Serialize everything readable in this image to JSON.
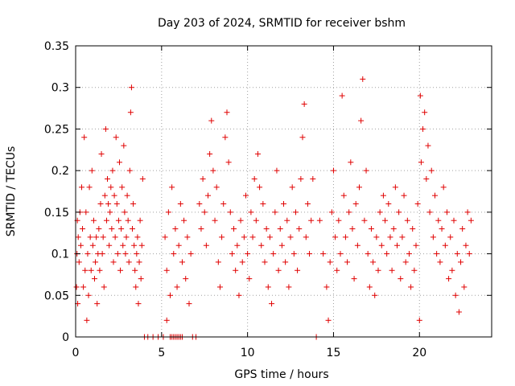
{
  "chart_data": {
    "type": "scatter",
    "title": "Day 203 of 2024, SRMTID for receiver bshm",
    "xlabel": "GPS time / hours",
    "ylabel": "SRMTID / TECUs",
    "xlim": [
      0,
      24.2
    ],
    "ylim": [
      0,
      0.35
    ],
    "xticks": [
      0,
      5,
      10,
      15,
      20
    ],
    "xtick_labels": [
      "0",
      "5",
      "10",
      "15",
      "20"
    ],
    "yticks": [
      0,
      0.05,
      0.1,
      0.15,
      0.2,
      0.25,
      0.3,
      0.35
    ],
    "ytick_labels": [
      "0",
      "0.05",
      "0.1",
      "0.15",
      "0.2",
      "0.25",
      "0.3",
      "0.35"
    ],
    "grid": true,
    "marker": "+",
    "color": "#e00000",
    "series": [
      {
        "name": "bshm",
        "points": [
          [
            0.05,
            0.06
          ],
          [
            0.08,
            0.1
          ],
          [
            0.1,
            0.14
          ],
          [
            0.12,
            0.04
          ],
          [
            0.15,
            0.12
          ],
          [
            0.2,
            0.09
          ],
          [
            0.25,
            0.15
          ],
          [
            0.3,
            0.11
          ],
          [
            0.35,
            0.18
          ],
          [
            0.4,
            0.13
          ],
          [
            0.45,
            0.06
          ],
          [
            0.5,
            0.24
          ],
          [
            0.55,
            0.08
          ],
          [
            0.6,
            0.15
          ],
          [
            0.65,
            0.02
          ],
          [
            0.7,
            0.1
          ],
          [
            0.75,
            0.05
          ],
          [
            0.8,
            0.18
          ],
          [
            0.85,
            0.12
          ],
          [
            0.9,
            0.08
          ],
          [
            0.95,
            0.2
          ],
          [
            1.0,
            0.11
          ],
          [
            1.05,
            0.14
          ],
          [
            1.1,
            0.07
          ],
          [
            1.15,
            0.09
          ],
          [
            1.2,
            0.12
          ],
          [
            1.25,
            0.04
          ],
          [
            1.3,
            0.1
          ],
          [
            1.35,
            0.13
          ],
          [
            1.4,
            0.08
          ],
          [
            1.45,
            0.16
          ],
          [
            1.5,
            0.22
          ],
          [
            1.55,
            0.1
          ],
          [
            1.6,
            0.12
          ],
          [
            1.65,
            0.06
          ],
          [
            1.7,
            0.17
          ],
          [
            1.75,
            0.25
          ],
          [
            1.8,
            0.14
          ],
          [
            1.85,
            0.19
          ],
          [
            1.9,
            0.16
          ],
          [
            1.95,
            0.11
          ],
          [
            2.0,
            0.15
          ],
          [
            2.05,
            0.18
          ],
          [
            2.1,
            0.13
          ],
          [
            2.15,
            0.2
          ],
          [
            2.2,
            0.09
          ],
          [
            2.25,
            0.17
          ],
          [
            2.3,
            0.12
          ],
          [
            2.35,
            0.24
          ],
          [
            2.4,
            0.16
          ],
          [
            2.45,
            0.1
          ],
          [
            2.5,
            0.14
          ],
          [
            2.55,
            0.21
          ],
          [
            2.6,
            0.08
          ],
          [
            2.65,
            0.13
          ],
          [
            2.7,
            0.18
          ],
          [
            2.75,
            0.11
          ],
          [
            2.8,
            0.23
          ],
          [
            2.85,
            0.15
          ],
          [
            2.9,
            0.1
          ],
          [
            2.95,
            0.12
          ],
          [
            3.0,
            0.17
          ],
          [
            3.05,
            0.14
          ],
          [
            3.1,
            0.09
          ],
          [
            3.15,
            0.2
          ],
          [
            3.2,
            0.27
          ],
          [
            3.25,
            0.3
          ],
          [
            3.3,
            0.13
          ],
          [
            3.35,
            0.16
          ],
          [
            3.4,
            0.11
          ],
          [
            3.45,
            0.08
          ],
          [
            3.5,
            0.06
          ],
          [
            3.55,
            0.1
          ],
          [
            3.6,
            0.12
          ],
          [
            3.65,
            0.04
          ],
          [
            3.7,
            0.09
          ],
          [
            3.75,
            0.14
          ],
          [
            3.8,
            0.07
          ],
          [
            3.85,
            0.11
          ],
          [
            3.9,
            0.19
          ],
          [
            4.0,
            0.0
          ],
          [
            4.2,
            0.0
          ],
          [
            4.5,
            0.0
          ],
          [
            4.8,
            0.0
          ],
          [
            5.1,
            0.0
          ],
          [
            5.3,
            0.02
          ],
          [
            5.5,
            0.0
          ],
          [
            5.6,
            0.0
          ],
          [
            5.7,
            0.0
          ],
          [
            5.8,
            0.0
          ],
          [
            5.9,
            0.0
          ],
          [
            6.0,
            0.0
          ],
          [
            6.1,
            0.0
          ],
          [
            6.2,
            0.0
          ],
          [
            5.2,
            0.12
          ],
          [
            5.3,
            0.08
          ],
          [
            5.4,
            0.15
          ],
          [
            5.5,
            0.05
          ],
          [
            5.6,
            0.18
          ],
          [
            5.7,
            0.1
          ],
          [
            5.8,
            0.13
          ],
          [
            5.9,
            0.06
          ],
          [
            6.0,
            0.11
          ],
          [
            6.1,
            0.16
          ],
          [
            6.2,
            0.09
          ],
          [
            6.3,
            0.14
          ],
          [
            6.4,
            0.07
          ],
          [
            6.5,
            0.12
          ],
          [
            6.6,
            0.04
          ],
          [
            6.7,
            0.1
          ],
          [
            6.8,
            0.0
          ],
          [
            7.0,
            0.0
          ],
          [
            7.2,
            0.16
          ],
          [
            7.3,
            0.13
          ],
          [
            7.4,
            0.19
          ],
          [
            7.5,
            0.15
          ],
          [
            7.6,
            0.11
          ],
          [
            7.7,
            0.17
          ],
          [
            7.8,
            0.22
          ],
          [
            7.9,
            0.26
          ],
          [
            8.0,
            0.2
          ],
          [
            8.1,
            0.14
          ],
          [
            8.2,
            0.18
          ],
          [
            8.3,
            0.09
          ],
          [
            8.4,
            0.06
          ],
          [
            8.5,
            0.12
          ],
          [
            8.6,
            0.16
          ],
          [
            8.7,
            0.24
          ],
          [
            8.8,
            0.27
          ],
          [
            8.9,
            0.21
          ],
          [
            9.0,
            0.15
          ],
          [
            9.1,
            0.1
          ],
          [
            9.2,
            0.13
          ],
          [
            9.3,
            0.08
          ],
          [
            9.4,
            0.11
          ],
          [
            9.5,
            0.05
          ],
          [
            9.6,
            0.14
          ],
          [
            9.7,
            0.09
          ],
          [
            9.8,
            0.12
          ],
          [
            9.9,
            0.17
          ],
          [
            10.0,
            0.1
          ],
          [
            10.1,
            0.07
          ],
          [
            10.2,
            0.15
          ],
          [
            10.3,
            0.12
          ],
          [
            10.4,
            0.19
          ],
          [
            10.5,
            0.14
          ],
          [
            10.6,
            0.22
          ],
          [
            10.7,
            0.18
          ],
          [
            10.8,
            0.11
          ],
          [
            10.9,
            0.16
          ],
          [
            11.0,
            0.09
          ],
          [
            11.1,
            0.13
          ],
          [
            11.2,
            0.06
          ],
          [
            11.3,
            0.12
          ],
          [
            11.4,
            0.04
          ],
          [
            11.5,
            0.1
          ],
          [
            11.6,
            0.15
          ],
          [
            11.7,
            0.2
          ],
          [
            11.8,
            0.08
          ],
          [
            11.9,
            0.13
          ],
          [
            12.0,
            0.11
          ],
          [
            12.1,
            0.16
          ],
          [
            12.2,
            0.09
          ],
          [
            12.3,
            0.14
          ],
          [
            12.4,
            0.06
          ],
          [
            12.5,
            0.12
          ],
          [
            12.6,
            0.18
          ],
          [
            12.7,
            0.1
          ],
          [
            12.8,
            0.15
          ],
          [
            12.9,
            0.08
          ],
          [
            13.0,
            0.13
          ],
          [
            13.1,
            0.19
          ],
          [
            13.2,
            0.24
          ],
          [
            13.3,
            0.28
          ],
          [
            13.4,
            0.12
          ],
          [
            13.5,
            0.16
          ],
          [
            13.6,
            0.1
          ],
          [
            13.7,
            0.14
          ],
          [
            13.8,
            0.19
          ],
          [
            14.0,
            0.0
          ],
          [
            14.2,
            0.14
          ],
          [
            14.4,
            0.1
          ],
          [
            14.6,
            0.06
          ],
          [
            14.7,
            0.02
          ],
          [
            14.8,
            0.09
          ],
          [
            14.9,
            0.15
          ],
          [
            15.0,
            0.2
          ],
          [
            15.1,
            0.12
          ],
          [
            15.2,
            0.08
          ],
          [
            15.3,
            0.14
          ],
          [
            15.4,
            0.1
          ],
          [
            15.5,
            0.29
          ],
          [
            15.6,
            0.17
          ],
          [
            15.7,
            0.12
          ],
          [
            15.8,
            0.09
          ],
          [
            15.9,
            0.15
          ],
          [
            16.0,
            0.21
          ],
          [
            16.1,
            0.13
          ],
          [
            16.2,
            0.07
          ],
          [
            16.3,
            0.16
          ],
          [
            16.4,
            0.11
          ],
          [
            16.5,
            0.18
          ],
          [
            16.6,
            0.26
          ],
          [
            16.7,
            0.31
          ],
          [
            16.8,
            0.14
          ],
          [
            16.9,
            0.2
          ],
          [
            17.0,
            0.1
          ],
          [
            17.1,
            0.06
          ],
          [
            17.2,
            0.13
          ],
          [
            17.3,
            0.09
          ],
          [
            17.4,
            0.05
          ],
          [
            17.5,
            0.12
          ],
          [
            17.6,
            0.08
          ],
          [
            17.7,
            0.15
          ],
          [
            17.8,
            0.11
          ],
          [
            17.9,
            0.17
          ],
          [
            18.0,
            0.14
          ],
          [
            18.1,
            0.1
          ],
          [
            18.2,
            0.16
          ],
          [
            18.3,
            0.12
          ],
          [
            18.4,
            0.08
          ],
          [
            18.5,
            0.13
          ],
          [
            18.6,
            0.18
          ],
          [
            18.7,
            0.11
          ],
          [
            18.8,
            0.15
          ],
          [
            18.9,
            0.07
          ],
          [
            19.0,
            0.12
          ],
          [
            19.1,
            0.17
          ],
          [
            19.2,
            0.09
          ],
          [
            19.3,
            0.14
          ],
          [
            19.4,
            0.1
          ],
          [
            19.5,
            0.06
          ],
          [
            19.6,
            0.13
          ],
          [
            19.7,
            0.08
          ],
          [
            19.8,
            0.11
          ],
          [
            19.9,
            0.16
          ],
          [
            20.0,
            0.02
          ],
          [
            20.05,
            0.29
          ],
          [
            20.1,
            0.21
          ],
          [
            20.2,
            0.25
          ],
          [
            20.3,
            0.27
          ],
          [
            20.4,
            0.19
          ],
          [
            20.5,
            0.23
          ],
          [
            20.6,
            0.15
          ],
          [
            20.7,
            0.2
          ],
          [
            20.8,
            0.12
          ],
          [
            20.9,
            0.17
          ],
          [
            21.0,
            0.1
          ],
          [
            21.1,
            0.14
          ],
          [
            21.2,
            0.09
          ],
          [
            21.3,
            0.13
          ],
          [
            21.4,
            0.18
          ],
          [
            21.5,
            0.11
          ],
          [
            21.6,
            0.15
          ],
          [
            21.7,
            0.07
          ],
          [
            21.8,
            0.12
          ],
          [
            21.9,
            0.08
          ],
          [
            22.0,
            0.14
          ],
          [
            22.1,
            0.05
          ],
          [
            22.2,
            0.1
          ],
          [
            22.3,
            0.03
          ],
          [
            22.4,
            0.09
          ],
          [
            22.5,
            0.13
          ],
          [
            22.6,
            0.06
          ],
          [
            22.7,
            0.11
          ],
          [
            22.8,
            0.15
          ],
          [
            22.9,
            0.1
          ],
          [
            23.0,
            0.14
          ]
        ]
      }
    ]
  }
}
